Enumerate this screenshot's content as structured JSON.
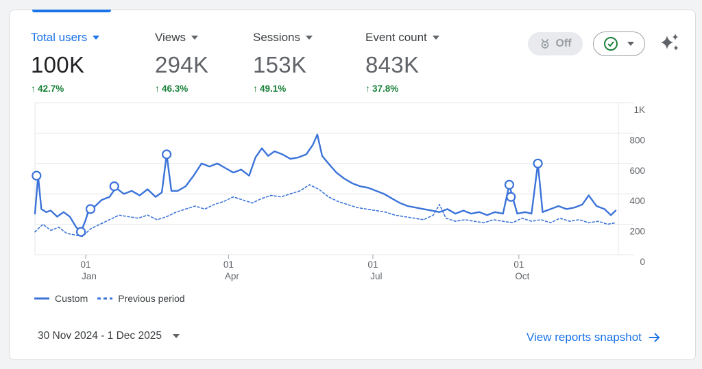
{
  "metrics": [
    {
      "label": "Total users",
      "value": "100K",
      "change": "42.7%",
      "active": true
    },
    {
      "label": "Views",
      "value": "294K",
      "change": "46.3%",
      "active": false
    },
    {
      "label": "Sessions",
      "value": "153K",
      "change": "49.1%",
      "active": false
    },
    {
      "label": "Event count",
      "value": "843K",
      "change": "37.8%",
      "active": false
    }
  ],
  "controls": {
    "off_label": "Off",
    "off_icon": "medal-icon",
    "compare_icon": "check-circle-icon",
    "sparkle_icon": "sparkle-icon"
  },
  "legend": {
    "current": "Custom",
    "previous": "Previous period"
  },
  "footer": {
    "date_range": "30 Nov 2024 - 1 Dec 2025",
    "link_label": "View reports snapshot"
  },
  "colors": {
    "accent": "#1a73e8",
    "series": "#3b73d9",
    "positive": "#188038"
  },
  "chart_data": {
    "type": "line",
    "xlabel": "",
    "ylabel": "",
    "ylim": [
      0,
      1000
    ],
    "y_ticks": [
      "0",
      "200",
      "400",
      "600",
      "800",
      "1K"
    ],
    "x_ticks": [
      {
        "day": "01",
        "month": "Jan",
        "date": "2025-01-01"
      },
      {
        "day": "01",
        "month": "Apr",
        "date": "2025-04-01"
      },
      {
        "day": "01",
        "month": "Jul",
        "date": "2025-07-01"
      },
      {
        "day": "01",
        "month": "Oct",
        "date": "2025-10-01"
      }
    ],
    "x_range": [
      "2024-11-30",
      "2025-12-01"
    ],
    "grid": true,
    "legend_position": "bottom-left",
    "series": [
      {
        "name": "Custom",
        "style": "solid",
        "points": [
          [
            "2024-11-30",
            270
          ],
          [
            "2024-12-02",
            520
          ],
          [
            "2024-12-04",
            300
          ],
          [
            "2024-12-07",
            280
          ],
          [
            "2024-12-10",
            290
          ],
          [
            "2024-12-14",
            250
          ],
          [
            "2024-12-18",
            280
          ],
          [
            "2024-12-22",
            250
          ],
          [
            "2024-12-26",
            180
          ],
          [
            "2024-12-29",
            150
          ],
          [
            "2025-01-01",
            230
          ],
          [
            "2025-01-03",
            300
          ],
          [
            "2025-01-07",
            320
          ],
          [
            "2025-01-11",
            360
          ],
          [
            "2025-01-16",
            380
          ],
          [
            "2025-01-20",
            440
          ],
          [
            "2025-01-25",
            400
          ],
          [
            "2025-01-30",
            420
          ],
          [
            "2025-02-04",
            390
          ],
          [
            "2025-02-09",
            430
          ],
          [
            "2025-02-14",
            380
          ],
          [
            "2025-02-18",
            410
          ],
          [
            "2025-02-21",
            660
          ],
          [
            "2025-02-24",
            420
          ],
          [
            "2025-02-28",
            420
          ],
          [
            "2025-03-05",
            450
          ],
          [
            "2025-03-10",
            520
          ],
          [
            "2025-03-15",
            600
          ],
          [
            "2025-03-20",
            580
          ],
          [
            "2025-03-25",
            600
          ],
          [
            "2025-03-30",
            570
          ],
          [
            "2025-04-04",
            540
          ],
          [
            "2025-04-09",
            560
          ],
          [
            "2025-04-14",
            520
          ],
          [
            "2025-04-18",
            640
          ],
          [
            "2025-04-22",
            700
          ],
          [
            "2025-04-26",
            650
          ],
          [
            "2025-04-30",
            680
          ],
          [
            "2025-05-05",
            660
          ],
          [
            "2025-05-10",
            630
          ],
          [
            "2025-05-15",
            640
          ],
          [
            "2025-05-20",
            660
          ],
          [
            "2025-05-24",
            720
          ],
          [
            "2025-05-27",
            790
          ],
          [
            "2025-05-30",
            650
          ],
          [
            "2025-06-03",
            600
          ],
          [
            "2025-06-08",
            540
          ],
          [
            "2025-06-13",
            500
          ],
          [
            "2025-06-18",
            470
          ],
          [
            "2025-06-23",
            450
          ],
          [
            "2025-06-28",
            440
          ],
          [
            "2025-07-03",
            420
          ],
          [
            "2025-07-08",
            400
          ],
          [
            "2025-07-13",
            370
          ],
          [
            "2025-07-18",
            340
          ],
          [
            "2025-07-23",
            320
          ],
          [
            "2025-07-28",
            310
          ],
          [
            "2025-08-02",
            300
          ],
          [
            "2025-08-07",
            290
          ],
          [
            "2025-08-12",
            280
          ],
          [
            "2025-08-17",
            300
          ],
          [
            "2025-08-22",
            270
          ],
          [
            "2025-08-27",
            290
          ],
          [
            "2025-09-01",
            270
          ],
          [
            "2025-09-06",
            280
          ],
          [
            "2025-09-11",
            260
          ],
          [
            "2025-09-16",
            280
          ],
          [
            "2025-09-21",
            270
          ],
          [
            "2025-09-25",
            460
          ],
          [
            "2025-09-27",
            380
          ],
          [
            "2025-09-30",
            270
          ],
          [
            "2025-10-05",
            280
          ],
          [
            "2025-10-09",
            270
          ],
          [
            "2025-10-13",
            600
          ],
          [
            "2025-10-16",
            280
          ],
          [
            "2025-10-21",
            300
          ],
          [
            "2025-10-26",
            320
          ],
          [
            "2025-10-31",
            300
          ],
          [
            "2025-11-05",
            310
          ],
          [
            "2025-11-10",
            330
          ],
          [
            "2025-11-14",
            390
          ],
          [
            "2025-11-19",
            320
          ],
          [
            "2025-11-24",
            300
          ],
          [
            "2025-11-28",
            260
          ],
          [
            "2025-12-01",
            290
          ]
        ],
        "annotations": [
          [
            "2024-12-01",
            520
          ],
          [
            "2024-12-29",
            150
          ],
          [
            "2025-01-04",
            300
          ],
          [
            "2025-01-19",
            450
          ],
          [
            "2025-02-21",
            660
          ],
          [
            "2025-09-25",
            460
          ],
          [
            "2025-09-26",
            380
          ],
          [
            "2025-10-13",
            600
          ]
        ]
      },
      {
        "name": "Previous period",
        "style": "dashed",
        "points": [
          [
            "2024-11-30",
            150
          ],
          [
            "2024-12-05",
            200
          ],
          [
            "2024-12-10",
            160
          ],
          [
            "2024-12-15",
            180
          ],
          [
            "2024-12-20",
            140
          ],
          [
            "2024-12-25",
            130
          ],
          [
            "2024-12-30",
            120
          ],
          [
            "2025-01-04",
            170
          ],
          [
            "2025-01-10",
            200
          ],
          [
            "2025-01-16",
            230
          ],
          [
            "2025-01-22",
            260
          ],
          [
            "2025-01-28",
            250
          ],
          [
            "2025-02-03",
            240
          ],
          [
            "2025-02-09",
            260
          ],
          [
            "2025-02-15",
            230
          ],
          [
            "2025-02-21",
            250
          ],
          [
            "2025-02-27",
            280
          ],
          [
            "2025-03-05",
            300
          ],
          [
            "2025-03-11",
            320
          ],
          [
            "2025-03-17",
            300
          ],
          [
            "2025-03-23",
            330
          ],
          [
            "2025-03-29",
            350
          ],
          [
            "2025-04-04",
            380
          ],
          [
            "2025-04-10",
            360
          ],
          [
            "2025-04-16",
            340
          ],
          [
            "2025-04-22",
            370
          ],
          [
            "2025-04-28",
            390
          ],
          [
            "2025-05-04",
            380
          ],
          [
            "2025-05-10",
            400
          ],
          [
            "2025-05-16",
            420
          ],
          [
            "2025-05-22",
            460
          ],
          [
            "2025-05-28",
            430
          ],
          [
            "2025-06-03",
            380
          ],
          [
            "2025-06-09",
            350
          ],
          [
            "2025-06-15",
            330
          ],
          [
            "2025-06-21",
            310
          ],
          [
            "2025-06-27",
            300
          ],
          [
            "2025-07-03",
            290
          ],
          [
            "2025-07-09",
            280
          ],
          [
            "2025-07-15",
            260
          ],
          [
            "2025-07-21",
            250
          ],
          [
            "2025-07-27",
            240
          ],
          [
            "2025-08-02",
            230
          ],
          [
            "2025-08-08",
            260
          ],
          [
            "2025-08-12",
            330
          ],
          [
            "2025-08-16",
            240
          ],
          [
            "2025-08-22",
            220
          ],
          [
            "2025-08-28",
            230
          ],
          [
            "2025-09-03",
            220
          ],
          [
            "2025-09-09",
            210
          ],
          [
            "2025-09-15",
            230
          ],
          [
            "2025-09-21",
            220
          ],
          [
            "2025-09-27",
            210
          ],
          [
            "2025-10-03",
            240
          ],
          [
            "2025-10-09",
            220
          ],
          [
            "2025-10-15",
            230
          ],
          [
            "2025-10-21",
            210
          ],
          [
            "2025-10-27",
            240
          ],
          [
            "2025-11-02",
            220
          ],
          [
            "2025-11-08",
            230
          ],
          [
            "2025-11-14",
            210
          ],
          [
            "2025-11-20",
            220
          ],
          [
            "2025-11-26",
            200
          ],
          [
            "2025-12-01",
            210
          ]
        ]
      }
    ]
  }
}
